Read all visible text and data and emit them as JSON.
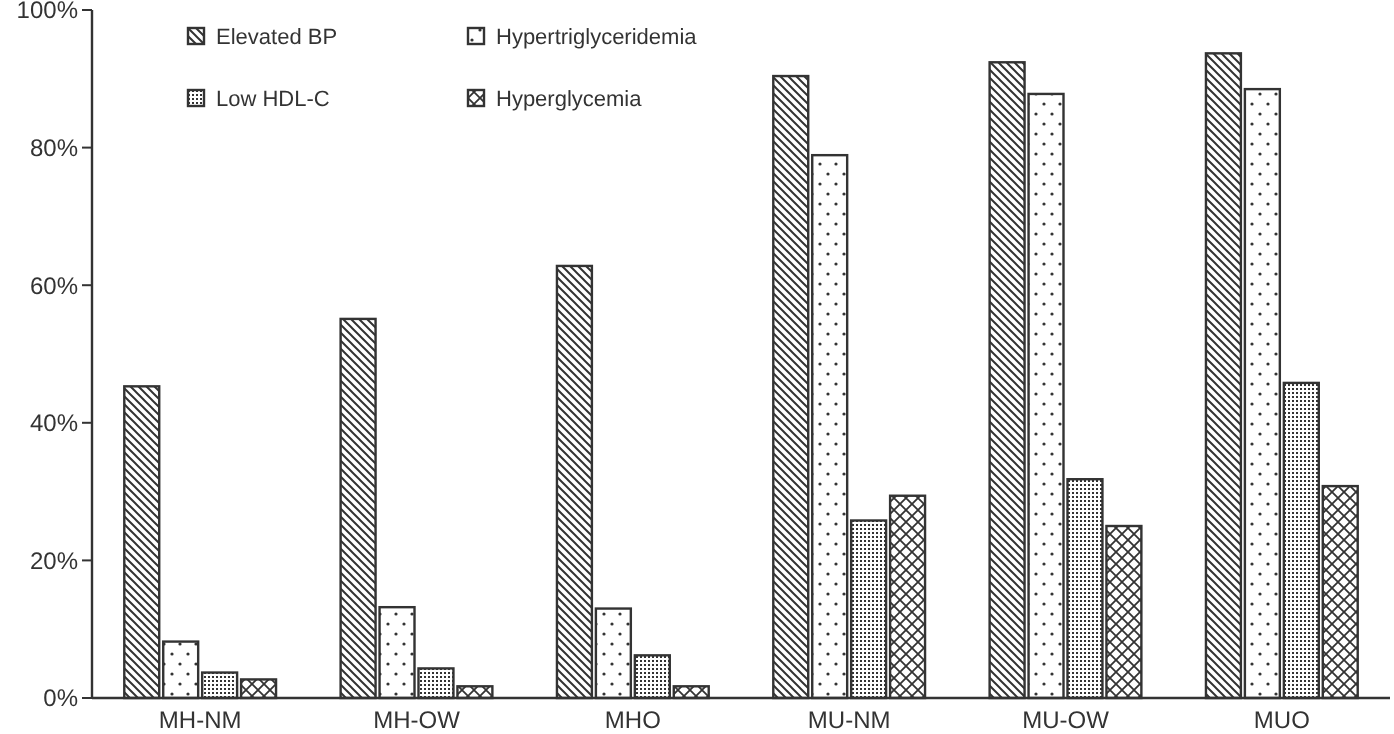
{
  "chart_data": {
    "type": "bar",
    "categories": [
      "MH-NM",
      "MH-OW",
      "MHO",
      "MU-NM",
      "MU-OW",
      "MUO"
    ],
    "series": [
      {
        "name": "Elevated BP",
        "color": "#333333",
        "values": [
          45.3,
          55.1,
          62.8,
          90.4,
          92.4,
          93.7
        ]
      },
      {
        "name": "Hypertriglyceridemia",
        "color": "#333333",
        "values": [
          8.2,
          13.2,
          13.0,
          78.9,
          87.8,
          88.5
        ]
      },
      {
        "name": "Low HDL-C",
        "color": "#333333",
        "values": [
          3.7,
          4.3,
          6.2,
          25.8,
          31.8,
          45.8
        ]
      },
      {
        "name": "Hyperglycemia",
        "color": "#333333",
        "values": [
          2.7,
          1.7,
          1.7,
          29.4,
          25.0,
          30.8
        ]
      }
    ],
    "ylim": [
      0,
      100
    ],
    "yticks": [
      {
        "value": 0,
        "label": "0%"
      },
      {
        "value": 20,
        "label": "20%"
      },
      {
        "value": 40,
        "label": "40%"
      },
      {
        "value": 60,
        "label": "60%"
      },
      {
        "value": 80,
        "label": "80%"
      },
      {
        "value": 100,
        "label": "100%"
      }
    ],
    "legend": "top left",
    "grid": false
  }
}
